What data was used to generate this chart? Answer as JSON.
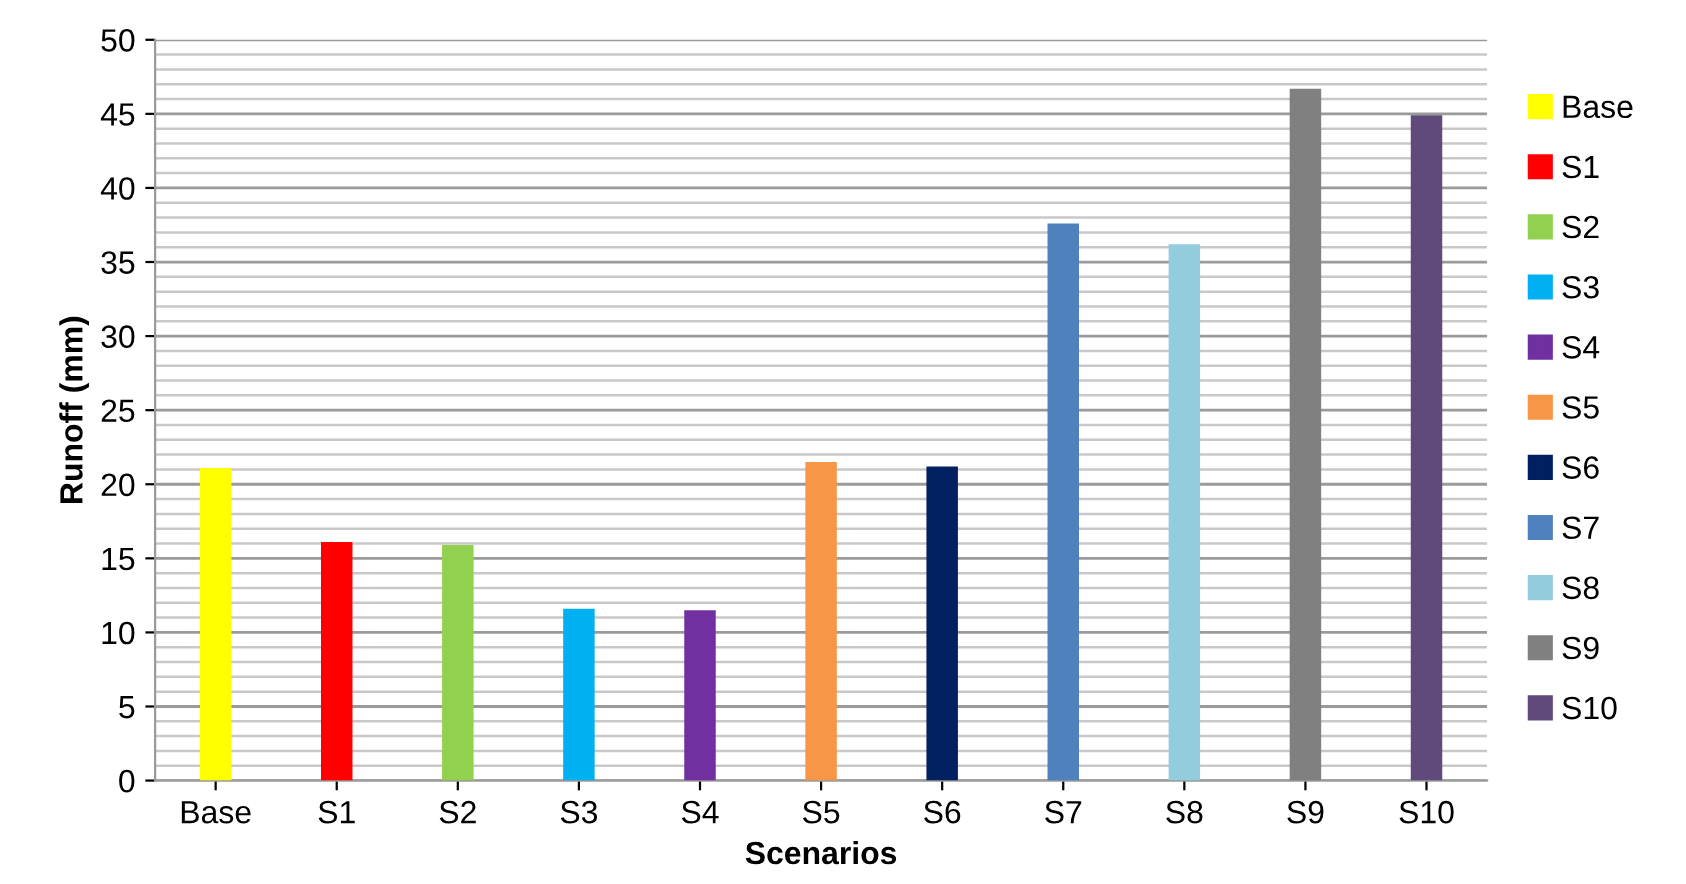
{
  "chart_data": {
    "type": "bar",
    "xlabel": "Scenarios",
    "ylabel": "Runoff (mm)",
    "categories": [
      "Base",
      "S1",
      "S2",
      "S3",
      "S4",
      "S5",
      "S6",
      "S7",
      "S8",
      "S9",
      "S10"
    ],
    "series": [
      {
        "name": "Base",
        "color": "#ffff00",
        "values": [
          21.1,
          null,
          null,
          null,
          null,
          null,
          null,
          null,
          null,
          null,
          null
        ]
      },
      {
        "name": "S1",
        "color": "#ff0000",
        "values": [
          null,
          16.1,
          null,
          null,
          null,
          null,
          null,
          null,
          null,
          null,
          null
        ]
      },
      {
        "name": "S2",
        "color": "#92d050",
        "values": [
          null,
          null,
          15.9,
          null,
          null,
          null,
          null,
          null,
          null,
          null,
          null
        ]
      },
      {
        "name": "S3",
        "color": "#00b0f0",
        "values": [
          null,
          null,
          null,
          11.6,
          null,
          null,
          null,
          null,
          null,
          null,
          null
        ]
      },
      {
        "name": "S4",
        "color": "#7030a0",
        "values": [
          null,
          null,
          null,
          null,
          11.5,
          null,
          null,
          null,
          null,
          null,
          null
        ]
      },
      {
        "name": "S5",
        "color": "#f79646",
        "values": [
          null,
          null,
          null,
          null,
          null,
          21.5,
          null,
          null,
          null,
          null,
          null
        ]
      },
      {
        "name": "S6",
        "color": "#002060",
        "values": [
          null,
          null,
          null,
          null,
          null,
          null,
          21.2,
          null,
          null,
          null,
          null
        ]
      },
      {
        "name": "S7",
        "color": "#4f81bd",
        "values": [
          null,
          null,
          null,
          null,
          null,
          null,
          null,
          37.6,
          null,
          null,
          null
        ]
      },
      {
        "name": "S8",
        "color": "#93cddd",
        "values": [
          null,
          null,
          null,
          null,
          null,
          null,
          null,
          null,
          36.2,
          null,
          null
        ]
      },
      {
        "name": "S9",
        "color": "#808080",
        "values": [
          null,
          null,
          null,
          null,
          null,
          null,
          null,
          null,
          null,
          46.7,
          null
        ]
      },
      {
        "name": "S10",
        "color": "#604a7b",
        "values": [
          null,
          null,
          null,
          null,
          null,
          null,
          null,
          null,
          null,
          null,
          44.9
        ]
      }
    ],
    "ylim": [
      0,
      50
    ],
    "yticks": [
      0,
      5,
      10,
      15,
      20,
      25,
      30,
      35,
      40,
      45,
      50
    ],
    "grid": "y",
    "legend": "right"
  }
}
